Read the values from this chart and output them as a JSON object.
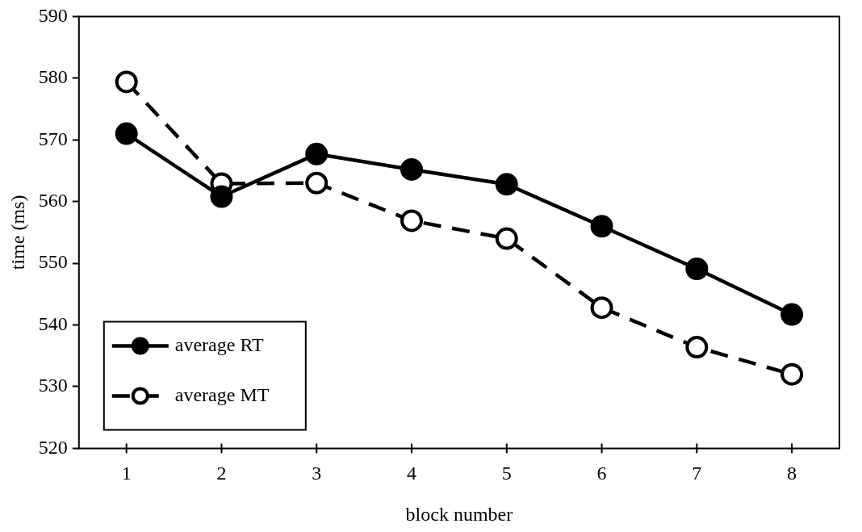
{
  "chart_data": {
    "type": "line",
    "xlabel": "block number",
    "ylabel": "time (ms)",
    "categories": [
      "1",
      "2",
      "3",
      "4",
      "5",
      "6",
      "7",
      "8"
    ],
    "series": [
      {
        "name": "average RT",
        "color": "#000000",
        "marker": "circle",
        "line_style": "solid",
        "values": [
          571.0,
          560.8,
          567.7,
          565.2,
          562.8,
          556.0,
          549.1,
          541.7
        ]
      },
      {
        "name": "average MT",
        "color": "#000000",
        "marker": "circle",
        "line_style": "dashed",
        "values": [
          579.4,
          562.9,
          563.0,
          556.9,
          554.0,
          542.8,
          536.4,
          532.0
        ]
      }
    ],
    "ylim": [
      520,
      590
    ],
    "yticks": [
      520,
      530,
      540,
      550,
      560,
      570,
      580,
      590
    ],
    "grid": false,
    "legend": "bottom left"
  }
}
